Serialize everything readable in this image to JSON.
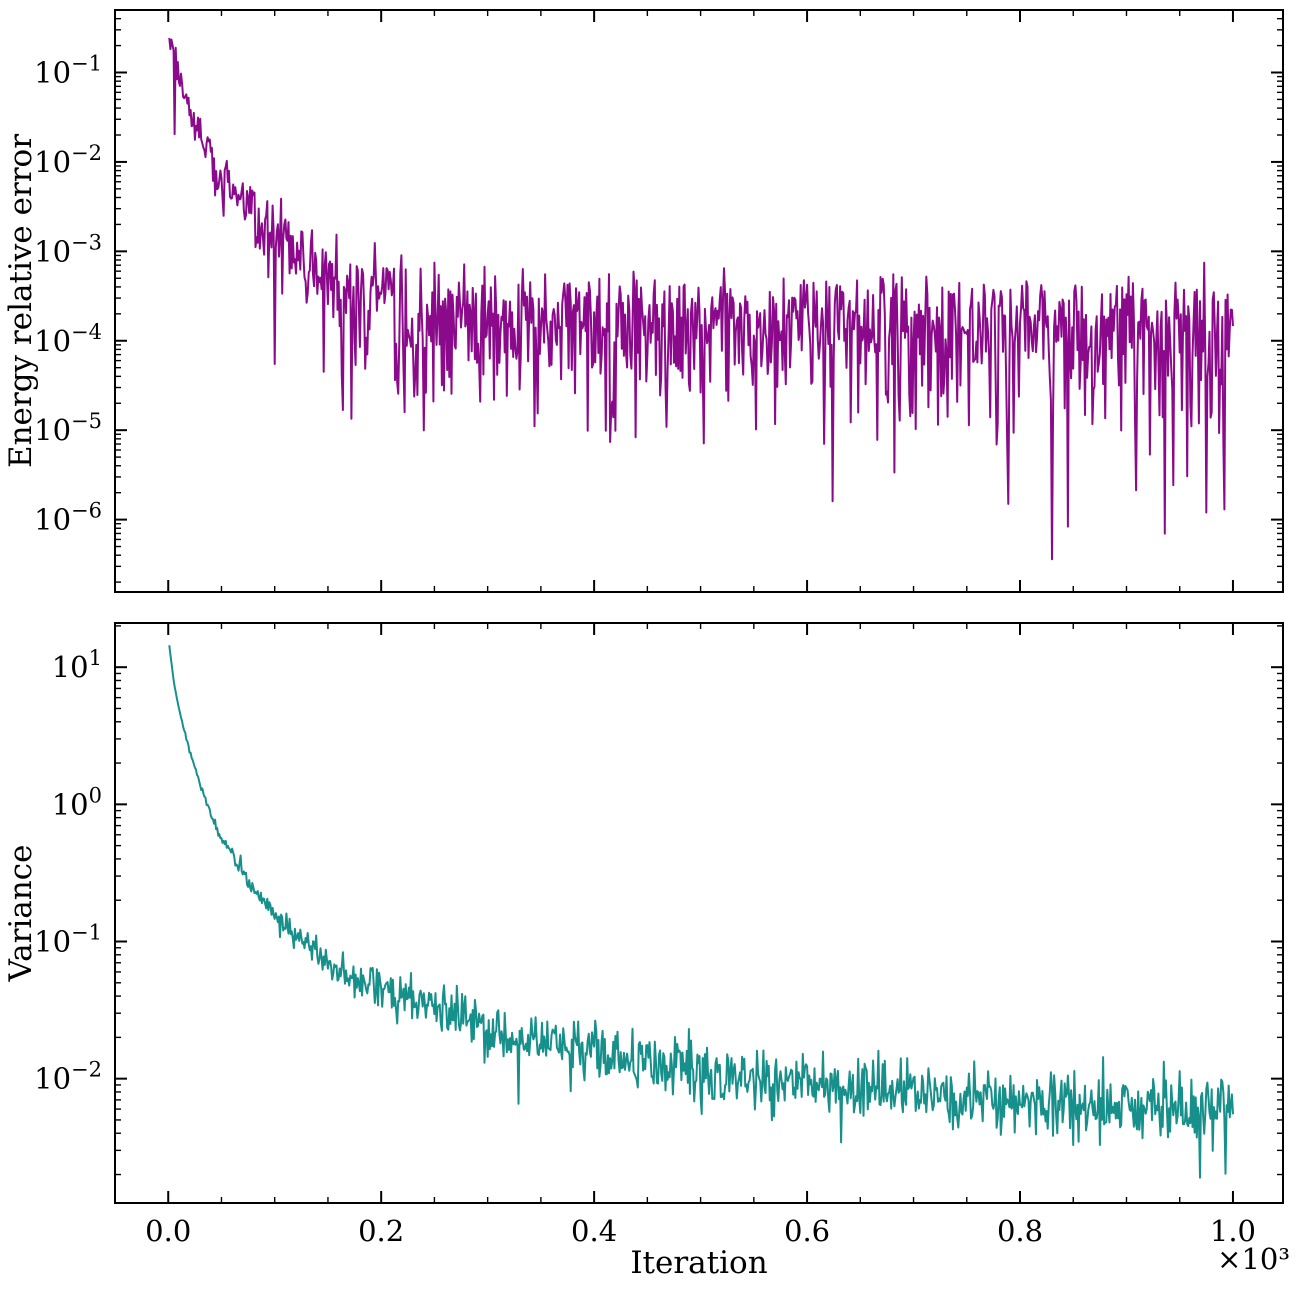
{
  "figure": {
    "background": "#ffffff",
    "text_color": "#000000"
  },
  "chart_data": [
    {
      "type": "line",
      "panel": "energy",
      "title": "",
      "xlabel": "",
      "ylabel": "Energy relative error",
      "x_axis": {
        "scale": "linear",
        "min": -50,
        "max": 1047,
        "major_ticks": [
          0,
          200,
          400,
          600,
          800,
          1000
        ],
        "minor_step": 50
      },
      "y_axis": {
        "scale": "log",
        "lim": [
          1.55e-07,
          0.5
        ],
        "tick_exponents": [
          -1,
          -2,
          -3,
          -4,
          -5,
          -6
        ]
      },
      "x_points": {
        "start": 1,
        "end": 1000,
        "step": 1
      },
      "grid": false,
      "legend": false,
      "series": [
        {
          "name": "energy-relative-error",
          "color": "#8B0A8B",
          "line_width": 2,
          "seed": 1337,
          "noise_model": "one-sided",
          "jitter_dex": 0.1,
          "dip_probability": 0.035,
          "dip_depth": [
            0.3,
            1.1
          ],
          "trend": [
            [
              1,
              0.27
            ],
            [
              5,
              0.165
            ],
            [
              10,
              0.1
            ],
            [
              15,
              0.066
            ],
            [
              20,
              0.044
            ],
            [
              25,
              0.03
            ],
            [
              30,
              0.022
            ],
            [
              40,
              0.0135
            ],
            [
              50,
              0.0092
            ],
            [
              60,
              0.0066
            ],
            [
              70,
              0.0049
            ],
            [
              80,
              0.0039
            ],
            [
              90,
              0.0031
            ],
            [
              100,
              0.0025
            ],
            [
              115,
              0.00195
            ],
            [
              130,
              0.0016
            ],
            [
              150,
              0.00125
            ],
            [
              170,
              0.001
            ],
            [
              190,
              0.00085
            ],
            [
              210,
              0.00073
            ],
            [
              240,
              0.00062
            ],
            [
              270,
              0.00056
            ],
            [
              300,
              0.00052
            ],
            [
              350,
              0.00049
            ],
            [
              400,
              0.00048
            ],
            [
              500,
              0.00046
            ],
            [
              600,
              0.00045
            ],
            [
              700,
              0.00044
            ],
            [
              800,
              0.00044
            ],
            [
              900,
              0.00043
            ],
            [
              1000,
              0.00042
            ]
          ],
          "noise_dex": [
            [
              1,
              0.008
            ],
            [
              20,
              0.03
            ],
            [
              40,
              0.09
            ],
            [
              60,
              0.16
            ],
            [
              80,
              0.26
            ],
            [
              100,
              0.36
            ],
            [
              150,
              0.52
            ],
            [
              200,
              0.62
            ],
            [
              250,
              0.7
            ],
            [
              1000,
              0.72
            ]
          ],
          "overrides": [
            [
              100,
              5.5e-05
            ],
            [
              146,
              4.5e-05
            ],
            [
              789,
              1.5e-06
            ],
            [
              830,
              3.6e-07
            ],
            [
              975,
              1.2e-06
            ],
            [
              992,
              1.3e-06
            ]
          ]
        }
      ]
    },
    {
      "type": "line",
      "panel": "variance",
      "title": "",
      "xlabel": "Iteration",
      "ylabel": "Variance",
      "x_axis": {
        "scale": "linear",
        "min": -50,
        "max": 1047,
        "major_ticks": [
          0,
          200,
          400,
          600,
          800,
          1000
        ],
        "tick_labels": [
          "0.0",
          "0.2",
          "0.4",
          "0.6",
          "0.8",
          "1.0"
        ],
        "minor_step": 50,
        "offset_label": "×10³"
      },
      "y_axis": {
        "scale": "log",
        "lim": [
          0.00124,
          21
        ],
        "tick_exponents": [
          1,
          0,
          -1,
          -2
        ]
      },
      "x_points": {
        "start": 1,
        "end": 1000,
        "step": 1
      },
      "grid": false,
      "legend": false,
      "series": [
        {
          "name": "variance",
          "color": "#17908B",
          "line_width": 2,
          "seed": 4242,
          "noise_model": "symmetric",
          "jitter_dex": 0.0,
          "dip_probability": 0.006,
          "dip_depth": [
            0.2,
            0.4
          ],
          "trend": [
            [
              1,
              14.5
            ],
            [
              5,
              8.0
            ],
            [
              10,
              5.0
            ],
            [
              15,
              3.5
            ],
            [
              20,
              2.5
            ],
            [
              25,
              1.85
            ],
            [
              30,
              1.4
            ],
            [
              40,
              0.85
            ],
            [
              50,
              0.58
            ],
            [
              60,
              0.42
            ],
            [
              70,
              0.32
            ],
            [
              80,
              0.245
            ],
            [
              90,
              0.195
            ],
            [
              100,
              0.155
            ],
            [
              115,
              0.118
            ],
            [
              130,
              0.094
            ],
            [
              150,
              0.072
            ],
            [
              170,
              0.058
            ],
            [
              190,
              0.049
            ],
            [
              210,
              0.042
            ],
            [
              240,
              0.034
            ],
            [
              270,
              0.028
            ],
            [
              300,
              0.024
            ],
            [
              350,
              0.0185
            ],
            [
              400,
              0.015
            ],
            [
              450,
              0.0128
            ],
            [
              500,
              0.0112
            ],
            [
              550,
              0.01
            ],
            [
              600,
              0.0091
            ],
            [
              650,
              0.0084
            ],
            [
              700,
              0.0078
            ],
            [
              750,
              0.0073
            ],
            [
              800,
              0.0069
            ],
            [
              850,
              0.0065
            ],
            [
              900,
              0.0062
            ],
            [
              950,
              0.0059
            ],
            [
              1000,
              0.0056
            ]
          ],
          "noise_dex": [
            [
              1,
              0.004
            ],
            [
              30,
              0.01
            ],
            [
              60,
              0.022
            ],
            [
              100,
              0.042
            ],
            [
              150,
              0.062
            ],
            [
              200,
              0.082
            ],
            [
              300,
              0.1
            ],
            [
              500,
              0.115
            ],
            [
              1000,
              0.13
            ]
          ],
          "overrides": [
            [
              443,
              0.0185
            ],
            [
              489,
              0.023
            ],
            [
              969,
              0.0019
            ]
          ]
        }
      ]
    }
  ]
}
